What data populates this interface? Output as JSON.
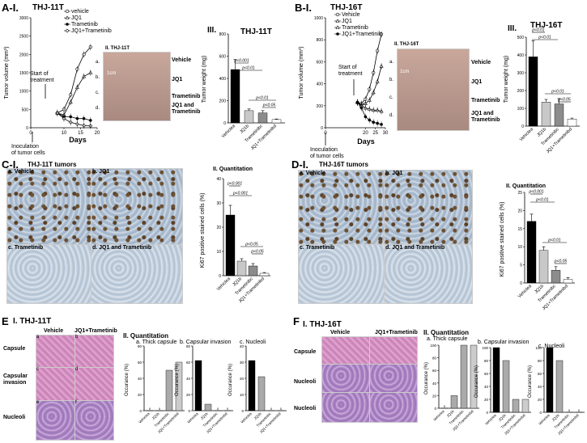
{
  "A": {
    "label": "A-I.",
    "title": "THJ-11T",
    "legend": [
      "vehicle",
      "JQ1",
      "Trametinib",
      "JQ1+Trametinib"
    ],
    "ylabel": "Tumor volume (mm³)",
    "xlabel": "Days",
    "yticks": [
      "0",
      "500",
      "1000",
      "1500",
      "2000",
      "2500",
      "3000"
    ],
    "xticks": [
      "0",
      "10",
      "15",
      "20"
    ],
    "start_note": "Start of\ntreatment",
    "inoc_note": "Inoculation\nof tumor cells",
    "photo_title": "II.  THJ-11T",
    "photo_rows": [
      "a.",
      "b.",
      "c.",
      "d."
    ],
    "photo_labels": [
      "Vehicle",
      "JQ1",
      "Trametinib",
      "JQ1 and\nTrametinib"
    ],
    "scale": "1cm",
    "bar_label": "III.",
    "bar_title": "THJ-11T",
    "bar_ylabel": "Tumor weight (mg)",
    "bar_yticks": [
      "0",
      "200",
      "400",
      "600",
      "800"
    ],
    "bar_cats": [
      "Vehicle",
      "JQ1",
      "Trametinib",
      "JQ1+Trametinib"
    ],
    "bar_cat_sup": [
      "a",
      "b",
      "c",
      "d"
    ],
    "p1": "p<0.001",
    "p2": "p<0.01",
    "p3": "p<0.01",
    "p4": "p<0.05"
  },
  "B": {
    "label": "B-I.",
    "title": "THJ-16T",
    "legend": [
      "Vehicle",
      "JQ1",
      "Trametinib",
      "JQ1+Trametinib"
    ],
    "ylabel": "Tumor volume (mm³)",
    "xlabel": "Days",
    "yticks": [
      "0",
      "200",
      "400",
      "600",
      "800",
      "1000"
    ],
    "xticks": [
      "0",
      "20",
      "25",
      "30"
    ],
    "start_note": "Start of\ntreatment",
    "inoc_note": "Inoculation\nof tumor cells",
    "photo_title": "II.  THJ-16T",
    "photo_rows": [
      "a.",
      "b.",
      "c.",
      "d."
    ],
    "photo_labels": [
      "Vehicle",
      "JQ1",
      "Trametinib",
      "JQ1 and\nTrametinib"
    ],
    "scale": "1cm",
    "bar_label": "III.",
    "bar_title": "THJ-16T",
    "bar_ylabel": "Tumor weight (mg)",
    "bar_yticks": [
      "0",
      "100",
      "200",
      "300",
      "400",
      "500"
    ],
    "bar_cats": [
      "Vehicle",
      "JQ1",
      "Trametinib",
      "JQ1+Trametinib"
    ],
    "bar_cat_sup": [
      "a",
      "b",
      "c",
      "d"
    ],
    "p1": "p<0.01",
    "p2": "p<0.01",
    "p3": "p<0.01",
    "p4": "p<0.05"
  },
  "C": {
    "label": "C-I.",
    "title": "THJ-11T tumors",
    "panels": [
      "a. Vehicle",
      "b. JQ1",
      "c. Trametinib",
      "d. JQ1 and Trametinib"
    ],
    "quant_title": "II. Quantitation",
    "ylabel": "Ki67 positive stained cells (%)",
    "yticks": [
      "0",
      "10",
      "20",
      "30",
      "40"
    ],
    "cats": [
      "Vehicle",
      "JQ1",
      "Trametinib",
      "JQ1+Trametinib"
    ],
    "cat_sup": [
      "a",
      "b",
      "c",
      "d"
    ],
    "p1": "p<0.001",
    "p2": "p<0.001",
    "p3": "p<0.05",
    "p4": "p<0.05"
  },
  "D": {
    "label": "D-I.",
    "title": "THJ-16T tumors",
    "panels": [
      "a. Vehicle",
      "b. JQ1",
      "c. Trametinib",
      "d. JQ1 and Trametinib"
    ],
    "quant_title": "II. Quantitation",
    "ylabel": "Ki67 positive stained cells (%)",
    "yticks": [
      "0",
      "5",
      "10",
      "15",
      "20",
      "25"
    ],
    "cats": [
      "Vehicle",
      "JQ1",
      "Trametinib",
      "JQ1+Trametinib"
    ],
    "cat_sup": [
      "a",
      "b",
      "c",
      "d"
    ],
    "p1": "p<0.001",
    "p2": "p<0.01",
    "p3": "p<0.01",
    "p4": "p<0.05"
  },
  "E": {
    "label": "E",
    "title": "I. THJ-11T",
    "col_labels": [
      "Vehicle",
      "JQ1+Trametinib"
    ],
    "row_labels": [
      "Capsule",
      "Capsular\ninvasion",
      "Nucleoli"
    ],
    "sub": [
      "a",
      "b",
      "c",
      "d",
      "e",
      "f"
    ],
    "quant_title": "II. Quantitation",
    "sub_titles": [
      "a. Thick capsule",
      "b. Capsular invasion",
      "c. Nucleoli"
    ],
    "ylabel": "Occurance (%)",
    "yticks": [
      "0",
      "20",
      "40",
      "60",
      "80"
    ],
    "yticks_b": [
      "0",
      "20",
      "40",
      "60",
      "80"
    ],
    "yticks_c": [
      "0",
      "10",
      "20",
      "30",
      "40"
    ],
    "cats": [
      "Vehicle",
      "JQ1",
      "Trametinib",
      "JQ1+Trametinib"
    ],
    "cat_sup": [
      "a",
      "b",
      "c",
      "d"
    ],
    "zero": "0"
  },
  "F": {
    "label": "F",
    "title": "I. THJ-16T",
    "col_labels": [
      "Vehicle",
      "JQ1+Trametinib"
    ],
    "row_labels": [
      "Capsule",
      "Nucleoli",
      "Nucleoli"
    ],
    "quant_title": "II. Quantitation",
    "sub_titles": [
      "a. Thick capsule",
      "b. Capsular invasion",
      "c. Nucleoli"
    ],
    "ylabel": "Occurance (%)",
    "yticks": [
      "0",
      "20",
      "40",
      "60",
      "80",
      "100"
    ],
    "cats": [
      "Vehicle",
      "JQ1",
      "Trametinib",
      "JQ1+Trametinib"
    ],
    "cat_sup": [
      "a",
      "b",
      "c",
      "d"
    ],
    "zero": "0"
  },
  "chart_data": [
    {
      "type": "line",
      "panel": "A-I",
      "title": "THJ-11T",
      "xlabel": "Days",
      "ylabel": "Tumor volume (mm³)",
      "ylim": [
        0,
        3000
      ],
      "xlim": [
        0,
        20
      ],
      "x": [
        8,
        10,
        12,
        14,
        16,
        18
      ],
      "series": [
        {
          "name": "vehicle",
          "values": [
            400,
            500,
            900,
            1600,
            2000,
            2200
          ]
        },
        {
          "name": "JQ1",
          "values": [
            400,
            350,
            700,
            1100,
            1400,
            1500
          ]
        },
        {
          "name": "Trametinib",
          "values": [
            400,
            300,
            300,
            250,
            250,
            200
          ]
        },
        {
          "name": "JQ1+Trametinib",
          "values": [
            400,
            250,
            150,
            100,
            60,
            50
          ]
        }
      ]
    },
    {
      "type": "bar",
      "panel": "A-III",
      "title": "THJ-11T",
      "ylabel": "Tumor weight (mg)",
      "ylim": [
        0,
        800
      ],
      "categories": [
        "Vehicle",
        "JQ1",
        "Trametinib",
        "JQ1+Trametinib"
      ],
      "values": [
        480,
        110,
        90,
        30
      ],
      "errors": [
        90,
        15,
        20,
        5
      ]
    },
    {
      "type": "line",
      "panel": "B-I",
      "title": "THJ-16T",
      "xlabel": "Days",
      "ylabel": "Tumor volume (mm³)",
      "ylim": [
        0,
        1000
      ],
      "xlim": [
        0,
        30
      ],
      "x": [
        16,
        18,
        20,
        22,
        24,
        26,
        28
      ],
      "series": [
        {
          "name": "Vehicle",
          "values": [
            230,
            220,
            260,
            350,
            500,
            700,
            850
          ]
        },
        {
          "name": "JQ1",
          "values": [
            230,
            210,
            220,
            250,
            320,
            420,
            560
          ]
        },
        {
          "name": "Trametinib",
          "values": [
            230,
            200,
            180,
            170,
            160,
            160,
            150
          ]
        },
        {
          "name": "JQ1+Trametinib",
          "values": [
            230,
            180,
            100,
            70,
            50,
            40,
            30
          ]
        }
      ]
    },
    {
      "type": "bar",
      "panel": "B-III",
      "title": "THJ-16T",
      "ylabel": "Tumor weight (mg)",
      "ylim": [
        0,
        500
      ],
      "categories": [
        "Vehicle",
        "JQ1",
        "Trametinib",
        "JQ1+Trametinib"
      ],
      "values": [
        390,
        135,
        125,
        40
      ],
      "errors": [
        90,
        15,
        30,
        5
      ]
    },
    {
      "type": "bar",
      "panel": "C-II",
      "ylabel": "Ki67 positive stained cells (%)",
      "ylim": [
        0,
        40
      ],
      "categories": [
        "Vehicle",
        "JQ1",
        "Trametinib",
        "JQ1+Trametinib"
      ],
      "values": [
        25,
        6,
        4,
        1
      ],
      "errors": [
        4,
        1,
        1,
        0.3
      ]
    },
    {
      "type": "bar",
      "panel": "D-II",
      "ylabel": "Ki67 positive stained cells (%)",
      "ylim": [
        0,
        25
      ],
      "categories": [
        "Vehicle",
        "JQ1",
        "Trametinib",
        "JQ1+Trametinib"
      ],
      "values": [
        17,
        9,
        3.5,
        1
      ],
      "errors": [
        2,
        1,
        1,
        0.5
      ]
    },
    {
      "type": "bar",
      "panel": "E-II-a",
      "title": "a. Thick capsule",
      "ylabel": "Occurance (%)",
      "ylim": [
        0,
        80
      ],
      "categories": [
        "Vehicle",
        "JQ1",
        "Trametinib",
        "JQ1+Trametinib"
      ],
      "values": [
        0,
        0,
        50,
        60
      ]
    },
    {
      "type": "bar",
      "panel": "E-II-b",
      "title": "b. Capsular invasion",
      "ylabel": "Occurance (%)",
      "ylim": [
        0,
        80
      ],
      "categories": [
        "Vehicle",
        "JQ1",
        "Trametinib",
        "JQ1+Trametinib"
      ],
      "values": [
        62,
        8,
        0,
        0
      ]
    },
    {
      "type": "bar",
      "panel": "E-II-c",
      "title": "c. Nucleoli",
      "ylabel": "Occurance (%)",
      "ylim": [
        0,
        40
      ],
      "categories": [
        "Vehicle",
        "JQ1",
        "Trametinib",
        "JQ1+Trametinib"
      ],
      "values": [
        31,
        21,
        0,
        0
      ]
    },
    {
      "type": "bar",
      "panel": "F-II-a",
      "title": "a. Thick capsule",
      "ylabel": "Occurance (%)",
      "ylim": [
        0,
        100
      ],
      "categories": [
        "Vehicle",
        "JQ1",
        "Trametinib",
        "JQ1+Trametinib"
      ],
      "values": [
        0,
        20,
        100,
        100
      ]
    },
    {
      "type": "bar",
      "panel": "F-II-b",
      "title": "b. Capsular invasion",
      "ylabel": "Occurance (%)",
      "ylim": [
        0,
        100
      ],
      "categories": [
        "Vehicle",
        "JQ1",
        "Trametinib",
        "JQ1+Trametinib"
      ],
      "values": [
        100,
        80,
        20,
        20
      ]
    },
    {
      "type": "bar",
      "panel": "F-II-c",
      "title": "c. Nucleoli",
      "ylabel": "Occurance (%)",
      "ylim": [
        0,
        100
      ],
      "categories": [
        "Vehicle",
        "JQ1",
        "Trametinib",
        "JQ1+Trametinib"
      ],
      "values": [
        100,
        80,
        0,
        0
      ]
    }
  ]
}
